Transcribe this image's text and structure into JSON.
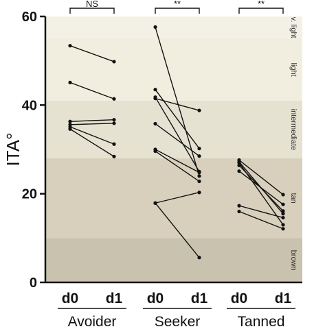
{
  "chart_data": {
    "type": "line",
    "ylabel": "ITA°",
    "ylim": [
      0,
      60
    ],
    "yticks": [
      "0",
      "20",
      "40",
      "60"
    ],
    "bands": [
      {
        "label": "v. light",
        "from": 55,
        "to": 60,
        "color": "#f3f1e6"
      },
      {
        "label": "light",
        "from": 41,
        "to": 55,
        "color": "#f1eee0"
      },
      {
        "label": "intermediate",
        "from": 28,
        "to": 41,
        "color": "#e6e2d2"
      },
      {
        "label": "tan",
        "from": 10,
        "to": 28,
        "color": "#d8d0bc"
      },
      {
        "label": "brown",
        "from": 0,
        "to": 10,
        "color": "#c9c2ae"
      }
    ],
    "groups": [
      {
        "name": "Avoider",
        "ticks": [
          "d0",
          "d1"
        ],
        "significance": "NS",
        "pairs": [
          [
            53.4,
            49.8
          ],
          [
            45.1,
            41.4
          ],
          [
            36.3,
            36.7
          ],
          [
            35.6,
            35.9
          ],
          [
            35.1,
            31.2
          ],
          [
            34.6,
            28.4
          ]
        ]
      },
      {
        "name": "Seeker",
        "ticks": [
          "d0",
          "d1"
        ],
        "significance": "**",
        "pairs": [
          [
            57.6,
            24.0
          ],
          [
            43.5,
            30.2
          ],
          [
            41.8,
            25.0
          ],
          [
            41.5,
            38.8
          ],
          [
            35.8,
            28.5
          ],
          [
            30.0,
            24.8
          ],
          [
            29.6,
            22.8
          ],
          [
            17.9,
            20.3
          ],
          [
            17.9,
            5.6
          ]
        ]
      },
      {
        "name": "Tanned",
        "ticks": [
          "d0",
          "d1"
        ],
        "significance": "**",
        "pairs": [
          [
            27.6,
            19.8
          ],
          [
            27.2,
            15.5
          ],
          [
            27.0,
            13.0
          ],
          [
            26.4,
            16.1
          ],
          [
            25.1,
            17.6
          ],
          [
            17.3,
            14.6
          ],
          [
            16.0,
            12.1
          ]
        ]
      }
    ]
  }
}
